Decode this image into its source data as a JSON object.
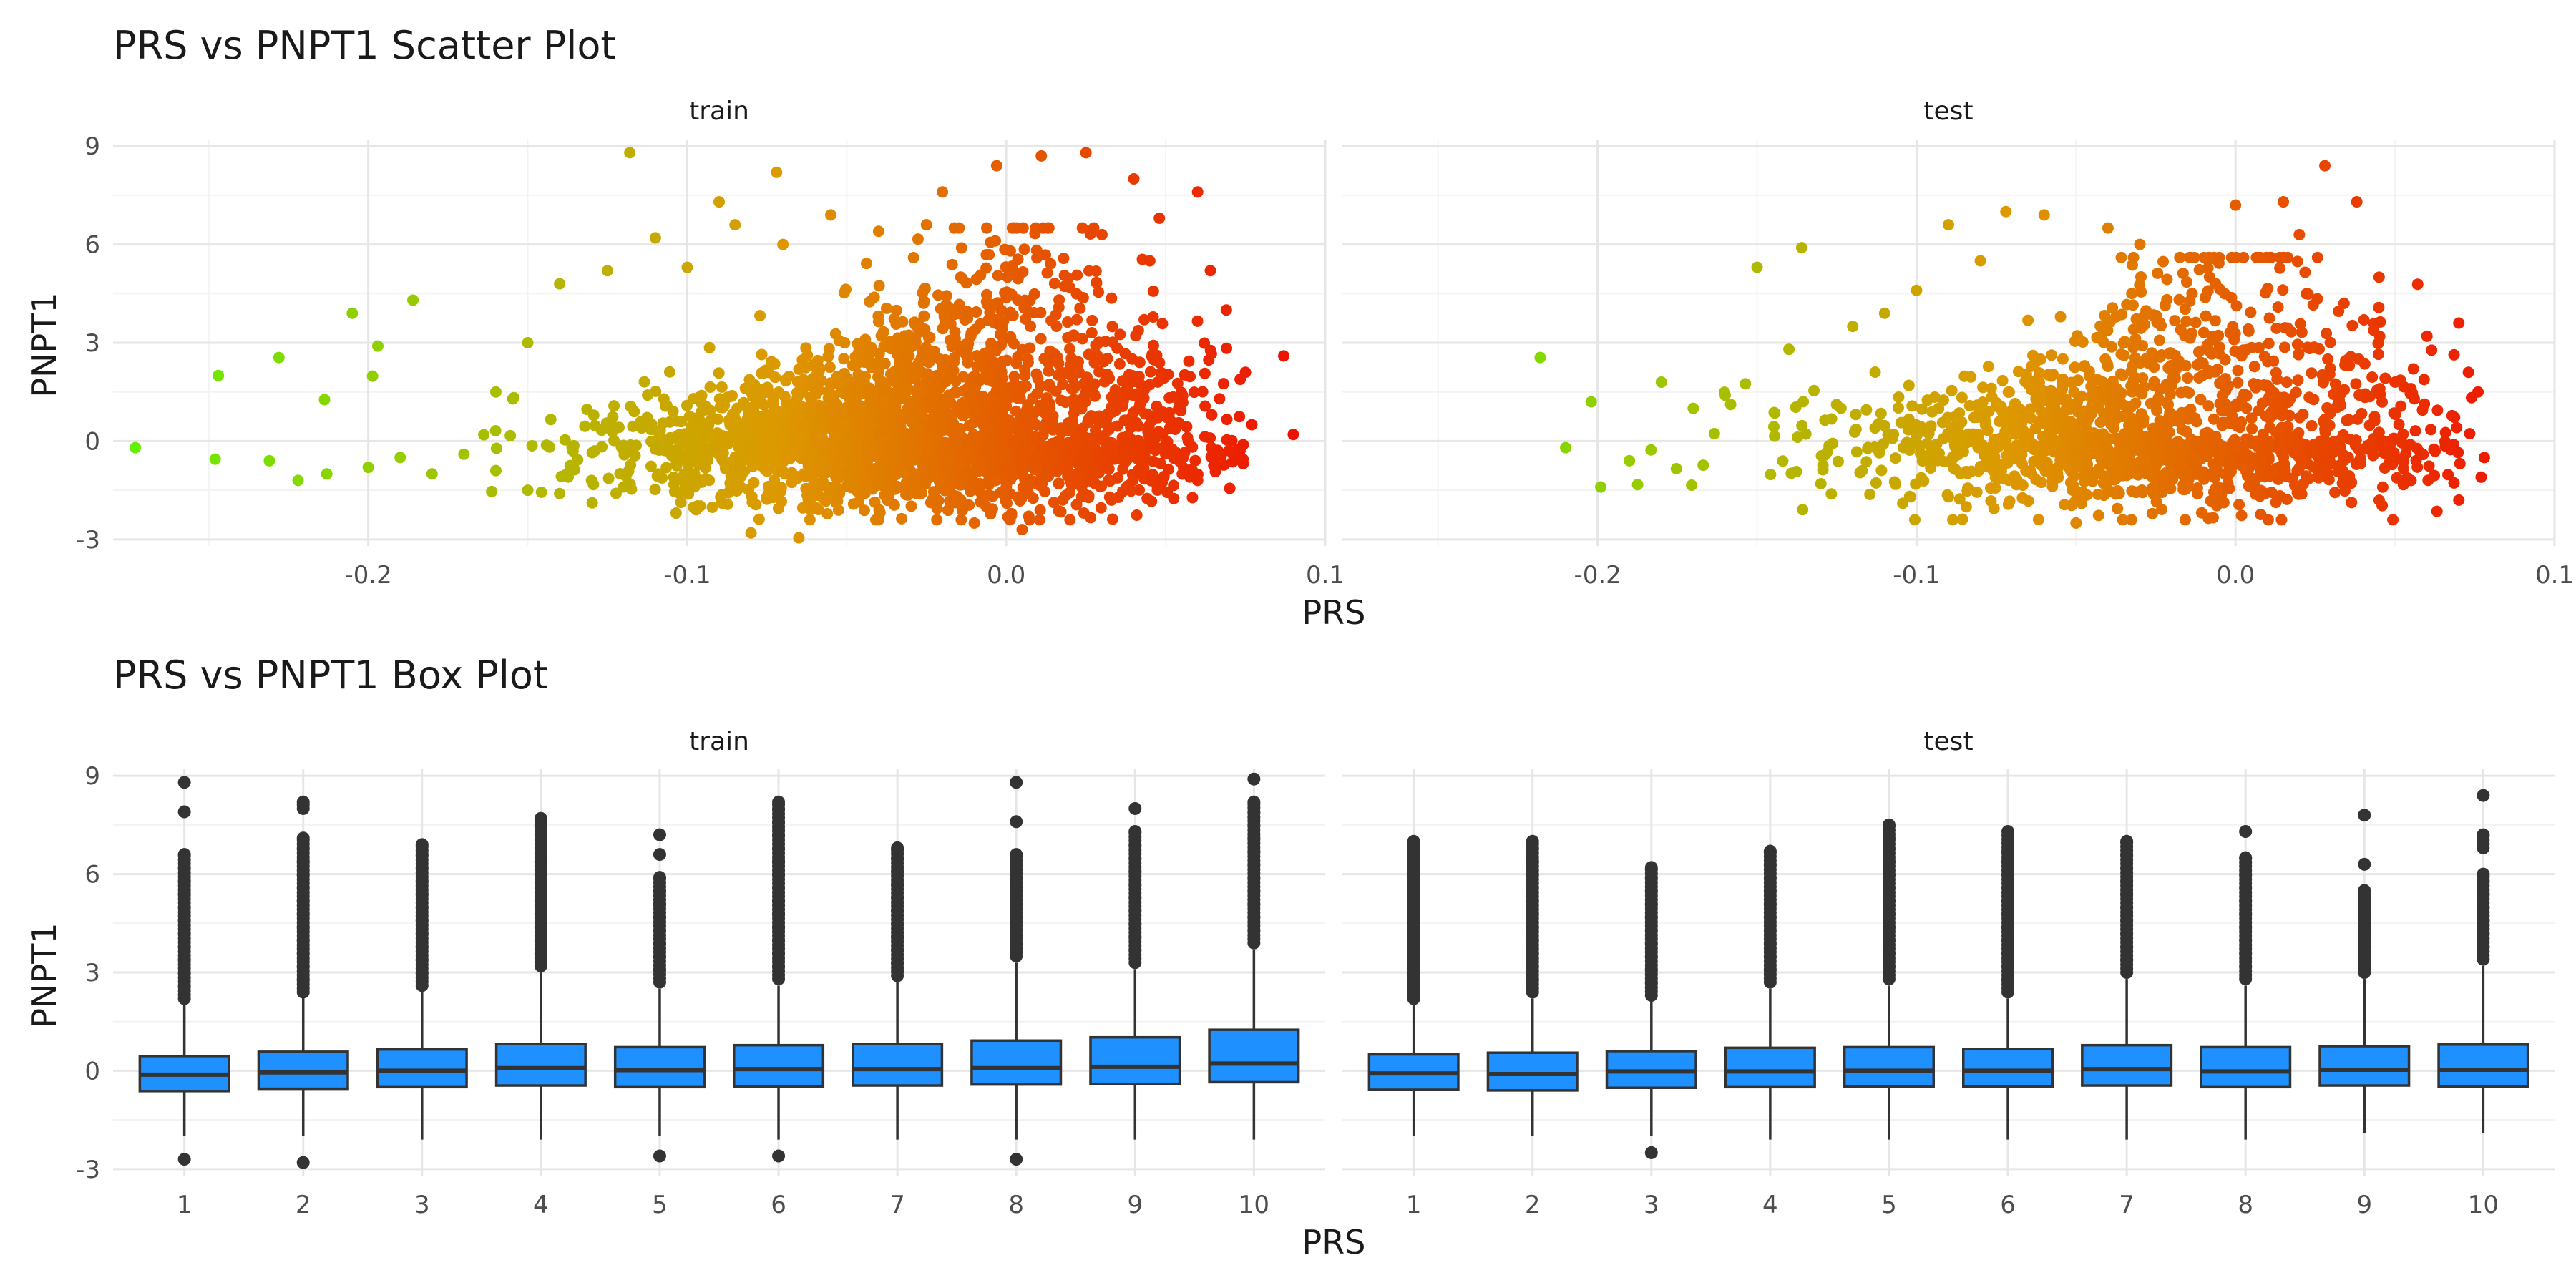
{
  "chart_data": [
    {
      "type": "scatter",
      "title": "PRS vs PNPT1 Scatter Plot",
      "xlabel": "PRS",
      "ylabel": "PNPT1",
      "facets": [
        "train",
        "test"
      ],
      "xticks": [
        -0.2,
        -0.1,
        0.0,
        0.1
      ],
      "xtick_labels": [
        "-0.2",
        "-0.1",
        "0.0",
        "0.1"
      ],
      "yticks": [
        -3,
        0,
        3,
        6,
        9
      ],
      "ytick_labels": [
        "-3",
        "0",
        "3",
        "6",
        "9"
      ],
      "xlim": [
        -0.28,
        0.1
      ],
      "ylim": [
        -3.2,
        9.2
      ],
      "grid": true,
      "legend": "none",
      "color_scale": {
        "by": "PRS",
        "low": "#66ee00",
        "mid": "#dd9900",
        "high": "#ee1100"
      },
      "series": [
        {
          "name": "train",
          "points": [
            [
              -0.273,
              -0.2
            ],
            [
              -0.248,
              -0.55
            ],
            [
              -0.247,
              2.0
            ],
            [
              -0.228,
              2.55
            ],
            [
              -0.205,
              3.9
            ],
            [
              -0.197,
              2.9
            ],
            [
              -0.186,
              4.3
            ],
            [
              -0.231,
              -0.6
            ],
            [
              -0.222,
              -1.2
            ],
            [
              -0.213,
              -1.0
            ],
            [
              -0.2,
              -0.8
            ],
            [
              -0.19,
              -0.5
            ],
            [
              -0.18,
              -1.0
            ],
            [
              -0.17,
              -0.4
            ],
            [
              -0.16,
              -0.9
            ],
            [
              -0.15,
              -1.5
            ],
            [
              -0.14,
              -1.6
            ],
            [
              -0.13,
              -1.2
            ],
            [
              -0.118,
              8.8
            ],
            [
              -0.09,
              7.3
            ],
            [
              -0.072,
              8.2
            ],
            [
              -0.02,
              7.6
            ],
            [
              -0.003,
              8.4
            ],
            [
              0.011,
              8.7
            ],
            [
              0.025,
              8.8
            ],
            [
              0.04,
              8.0
            ],
            [
              0.048,
              6.8
            ],
            [
              0.06,
              7.6
            ],
            [
              0.064,
              5.2
            ],
            [
              0.069,
              4.0
            ],
            [
              0.075,
              2.1
            ],
            [
              0.077,
              0.5
            ],
            [
              0.087,
              2.6
            ],
            [
              0.09,
              0.2
            ],
            [
              0.073,
              -0.5
            ],
            [
              0.06,
              -1.2
            ],
            [
              -0.08,
              -2.8
            ],
            [
              -0.065,
              -2.95
            ],
            [
              -0.01,
              -2.5
            ],
            [
              0.005,
              -2.7
            ],
            [
              0.02,
              -2.4
            ],
            [
              0.033,
              -1.8
            ],
            [
              -0.12,
              -1.4
            ],
            [
              -0.16,
              1.5
            ],
            [
              -0.15,
              3.0
            ],
            [
              -0.14,
              4.8
            ],
            [
              -0.125,
              5.2
            ],
            [
              -0.11,
              6.2
            ],
            [
              -0.1,
              5.3
            ],
            [
              -0.085,
              6.6
            ],
            [
              -0.07,
              6.0
            ],
            [
              -0.055,
              6.9
            ],
            [
              -0.04,
              6.4
            ],
            [
              -0.025,
              6.6
            ],
            [
              0.03,
              6.3
            ],
            [
              0.045,
              5.5
            ]
          ]
        },
        {
          "name": "test",
          "points": [
            [
              -0.218,
              2.55
            ],
            [
              -0.202,
              1.2
            ],
            [
              -0.199,
              -1.4
            ],
            [
              -0.18,
              1.8
            ],
            [
              -0.17,
              1.0
            ],
            [
              -0.16,
              1.4
            ],
            [
              -0.15,
              5.3
            ],
            [
              -0.136,
              5.9
            ],
            [
              -0.09,
              6.6
            ],
            [
              -0.072,
              7.0
            ],
            [
              -0.06,
              6.9
            ],
            [
              -0.04,
              6.5
            ],
            [
              0.0,
              7.2
            ],
            [
              0.015,
              7.3
            ],
            [
              0.028,
              8.4
            ],
            [
              0.038,
              7.3
            ],
            [
              0.06,
              3.2
            ],
            [
              0.07,
              3.6
            ],
            [
              0.073,
              2.1
            ],
            [
              0.076,
              1.5
            ],
            [
              0.078,
              -0.5
            ],
            [
              0.077,
              -1.1
            ],
            [
              0.07,
              -1.8
            ],
            [
              0.055,
              -1.2
            ],
            [
              -0.05,
              -2.5
            ],
            [
              -0.09,
              -1.7
            ],
            [
              -0.13,
              -1.3
            ],
            [
              -0.21,
              -0.2
            ],
            [
              -0.19,
              -0.6
            ],
            [
              -0.11,
              3.9
            ],
            [
              -0.12,
              3.5
            ],
            [
              -0.08,
              5.5
            ],
            [
              -0.03,
              6.0
            ],
            [
              0.02,
              6.3
            ],
            [
              0.045,
              5.0
            ],
            [
              0.05,
              1.8
            ],
            [
              -0.1,
              4.6
            ],
            [
              -0.14,
              2.8
            ]
          ]
        }
      ]
    },
    {
      "type": "box",
      "title": "PRS vs PNPT1 Box Plot",
      "xlabel": "PRS",
      "ylabel": "PNPT1",
      "facets": [
        "train",
        "test"
      ],
      "categories": [
        "1",
        "2",
        "3",
        "4",
        "5",
        "6",
        "7",
        "8",
        "9",
        "10"
      ],
      "yticks": [
        -3,
        0,
        3,
        6,
        9
      ],
      "ytick_labels": [
        "-3",
        "0",
        "3",
        "6",
        "9"
      ],
      "ylim": [
        -3.2,
        9.2
      ],
      "grid": true,
      "legend": "none",
      "box_color": "#1e90ff",
      "series": [
        {
          "name": "train",
          "boxes": [
            {
              "q1": -0.62,
              "median": -0.12,
              "q3": 0.45,
              "wlo": -2.0,
              "whi": 2.0,
              "out_lo": [
                -2.7
              ],
              "out_hi": [
                2.2,
                2.6,
                3.0,
                3.4,
                3.8,
                4.2,
                4.6,
                5.0,
                5.4,
                5.8,
                6.2,
                6.6,
                7.9,
                8.8
              ]
            },
            {
              "q1": -0.55,
              "median": -0.05,
              "q3": 0.58,
              "wlo": -2.0,
              "whi": 2.3,
              "out_lo": [
                -2.8
              ],
              "out_hi": [
                2.4,
                2.8,
                3.2,
                3.6,
                4.0,
                4.4,
                4.8,
                5.2,
                5.6,
                6.0,
                6.4,
                6.8,
                7.1,
                8.0,
                8.2
              ]
            },
            {
              "q1": -0.5,
              "median": 0.0,
              "q3": 0.65,
              "wlo": -2.1,
              "whi": 2.4,
              "out_lo": [],
              "out_hi": [
                2.6,
                3.0,
                3.4,
                3.8,
                4.2,
                4.6,
                5.0,
                5.4,
                5.8,
                6.2,
                6.6,
                6.9
              ]
            },
            {
              "q1": -0.45,
              "median": 0.08,
              "q3": 0.82,
              "wlo": -2.1,
              "whi": 3.0,
              "out_lo": [],
              "out_hi": [
                3.2,
                3.6,
                4.0,
                4.4,
                4.8,
                5.2,
                5.6,
                6.0,
                6.4,
                6.8,
                7.2,
                7.5,
                7.7
              ]
            },
            {
              "q1": -0.5,
              "median": 0.02,
              "q3": 0.72,
              "wlo": -2.0,
              "whi": 2.5,
              "out_lo": [
                -2.6
              ],
              "out_hi": [
                2.7,
                3.1,
                3.5,
                3.9,
                4.3,
                4.7,
                5.1,
                5.5,
                5.9,
                6.6,
                7.2
              ]
            },
            {
              "q1": -0.48,
              "median": 0.05,
              "q3": 0.78,
              "wlo": -2.1,
              "whi": 2.6,
              "out_lo": [
                -2.6
              ],
              "out_hi": [
                2.8,
                3.2,
                3.6,
                4.0,
                4.4,
                4.8,
                5.2,
                5.6,
                6.0,
                6.4,
                6.8,
                7.2,
                7.6,
                8.0,
                8.2
              ]
            },
            {
              "q1": -0.45,
              "median": 0.05,
              "q3": 0.82,
              "wlo": -2.1,
              "whi": 2.7,
              "out_lo": [],
              "out_hi": [
                2.9,
                3.3,
                3.7,
                4.1,
                4.5,
                4.9,
                5.3,
                5.7,
                6.1,
                6.5,
                6.8
              ]
            },
            {
              "q1": -0.42,
              "median": 0.08,
              "q3": 0.92,
              "wlo": -2.1,
              "whi": 3.3,
              "out_lo": [
                -2.7
              ],
              "out_hi": [
                3.5,
                3.9,
                4.3,
                4.7,
                5.1,
                5.5,
                5.9,
                6.3,
                6.6,
                7.6,
                8.8
              ]
            },
            {
              "q1": -0.4,
              "median": 0.12,
              "q3": 1.02,
              "wlo": -2.1,
              "whi": 3.1,
              "out_lo": [],
              "out_hi": [
                3.3,
                3.7,
                4.1,
                4.5,
                4.9,
                5.3,
                5.7,
                6.1,
                6.5,
                6.9,
                7.3,
                8.0
              ]
            },
            {
              "q1": -0.35,
              "median": 0.22,
              "q3": 1.25,
              "wlo": -2.1,
              "whi": 3.7,
              "out_lo": [],
              "out_hi": [
                3.9,
                4.3,
                4.7,
                5.1,
                5.5,
                5.9,
                6.3,
                6.7,
                7.1,
                7.5,
                7.9,
                8.2,
                8.9
              ]
            }
          ]
        },
        {
          "name": "test",
          "boxes": [
            {
              "q1": -0.58,
              "median": -0.08,
              "q3": 0.5,
              "wlo": -2.0,
              "whi": 2.0,
              "out_lo": [],
              "out_hi": [
                2.2,
                2.6,
                3.0,
                3.4,
                3.8,
                4.2,
                4.6,
                5.0,
                5.4,
                5.8,
                6.2,
                6.6,
                7.0
              ]
            },
            {
              "q1": -0.6,
              "median": -0.1,
              "q3": 0.55,
              "wlo": -2.0,
              "whi": 2.2,
              "out_lo": [],
              "out_hi": [
                2.4,
                2.8,
                3.2,
                3.6,
                4.0,
                4.4,
                4.8,
                5.2,
                5.6,
                6.0,
                6.4,
                6.8,
                7.0
              ]
            },
            {
              "q1": -0.52,
              "median": -0.02,
              "q3": 0.6,
              "wlo": -2.0,
              "whi": 2.1,
              "out_lo": [
                -2.5
              ],
              "out_hi": [
                2.3,
                2.7,
                3.1,
                3.5,
                3.9,
                4.3,
                4.7,
                5.1,
                5.5,
                5.9,
                6.2
              ]
            },
            {
              "q1": -0.5,
              "median": -0.02,
              "q3": 0.7,
              "wlo": -2.1,
              "whi": 2.5,
              "out_lo": [],
              "out_hi": [
                2.7,
                3.1,
                3.5,
                3.9,
                4.3,
                4.7,
                5.1,
                5.5,
                5.9,
                6.3,
                6.7
              ]
            },
            {
              "q1": -0.48,
              "median": 0.0,
              "q3": 0.72,
              "wlo": -2.1,
              "whi": 2.6,
              "out_lo": [],
              "out_hi": [
                2.8,
                3.2,
                3.6,
                4.0,
                4.4,
                4.8,
                5.2,
                5.6,
                6.0,
                6.4,
                6.8,
                7.1,
                7.5
              ]
            },
            {
              "q1": -0.48,
              "median": 0.0,
              "q3": 0.66,
              "wlo": -2.1,
              "whi": 2.2,
              "out_lo": [],
              "out_hi": [
                2.4,
                2.8,
                3.2,
                3.6,
                4.0,
                4.4,
                4.8,
                5.2,
                5.6,
                6.0,
                6.4,
                6.7,
                7.3
              ]
            },
            {
              "q1": -0.45,
              "median": 0.05,
              "q3": 0.78,
              "wlo": -2.1,
              "whi": 2.8,
              "out_lo": [],
              "out_hi": [
                3.0,
                3.4,
                3.8,
                4.2,
                4.6,
                5.0,
                5.4,
                5.8,
                6.2,
                6.6,
                7.0
              ]
            },
            {
              "q1": -0.5,
              "median": -0.02,
              "q3": 0.72,
              "wlo": -2.1,
              "whi": 2.6,
              "out_lo": [],
              "out_hi": [
                2.8,
                3.2,
                3.6,
                4.0,
                4.4,
                4.8,
                5.2,
                5.6,
                6.0,
                6.5,
                7.3
              ]
            },
            {
              "q1": -0.45,
              "median": 0.03,
              "q3": 0.75,
              "wlo": -1.9,
              "whi": 2.8,
              "out_lo": [],
              "out_hi": [
                3.0,
                3.4,
                3.8,
                4.2,
                4.6,
                5.0,
                5.5,
                6.3,
                7.8
              ]
            },
            {
              "q1": -0.48,
              "median": 0.03,
              "q3": 0.8,
              "wlo": -1.9,
              "whi": 3.2,
              "out_lo": [],
              "out_hi": [
                3.4,
                3.8,
                4.2,
                4.6,
                5.0,
                5.4,
                5.8,
                6.0,
                6.8,
                7.2,
                8.4
              ]
            }
          ]
        }
      ]
    }
  ]
}
